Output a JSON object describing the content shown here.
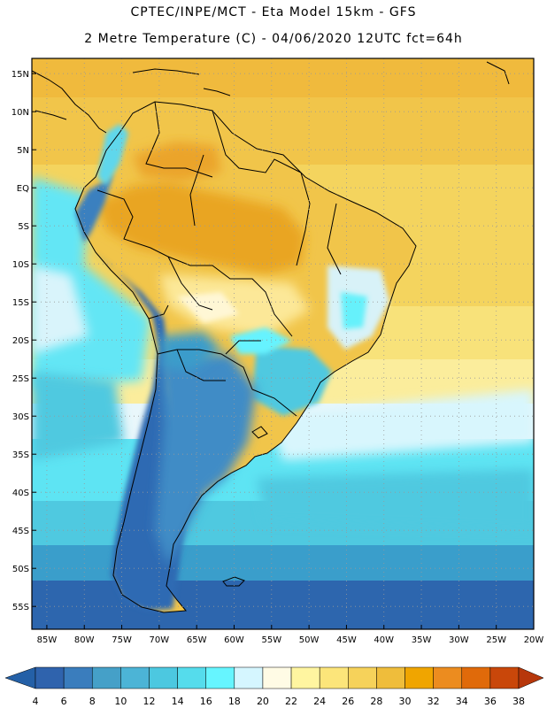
{
  "header": {
    "line1": "CPTEC/INPE/MCT -  Eta Model 15km - GFS",
    "line2": "2 Metre Temperature (C) - 04/06/2020 12UTC fct=64h"
  },
  "map": {
    "lon_range": [
      -87,
      -20
    ],
    "lat_range": [
      -58,
      17
    ],
    "lat_ticks": [
      {
        "value": 15,
        "label": "15N"
      },
      {
        "value": 10,
        "label": "10N"
      },
      {
        "value": 5,
        "label": "5N"
      },
      {
        "value": 0,
        "label": "EQ"
      },
      {
        "value": -5,
        "label": "5S"
      },
      {
        "value": -10,
        "label": "10S"
      },
      {
        "value": -15,
        "label": "15S"
      },
      {
        "value": -20,
        "label": "20S"
      },
      {
        "value": -25,
        "label": "25S"
      },
      {
        "value": -30,
        "label": "30S"
      },
      {
        "value": -35,
        "label": "35S"
      },
      {
        "value": -40,
        "label": "40S"
      },
      {
        "value": -45,
        "label": "45S"
      },
      {
        "value": -50,
        "label": "50S"
      },
      {
        "value": -55,
        "label": "55S"
      }
    ],
    "lon_ticks": [
      {
        "value": -85,
        "label": "85W"
      },
      {
        "value": -80,
        "label": "80W"
      },
      {
        "value": -75,
        "label": "75W"
      },
      {
        "value": -70,
        "label": "70W"
      },
      {
        "value": -65,
        "label": "65W"
      },
      {
        "value": -60,
        "label": "60W"
      },
      {
        "value": -55,
        "label": "55W"
      },
      {
        "value": -50,
        "label": "50W"
      },
      {
        "value": -45,
        "label": "45W"
      },
      {
        "value": -40,
        "label": "40W"
      },
      {
        "value": -35,
        "label": "35W"
      },
      {
        "value": -30,
        "label": "30W"
      },
      {
        "value": -25,
        "label": "25W"
      },
      {
        "value": -20,
        "label": "20W"
      }
    ],
    "grid": true,
    "grid_style": "dotted"
  },
  "colorbar": {
    "labels": [
      "4",
      "6",
      "8",
      "10",
      "12",
      "14",
      "16",
      "18",
      "20",
      "22",
      "24",
      "26",
      "28",
      "30",
      "32",
      "34",
      "36",
      "38"
    ],
    "colors": [
      "#2f63ad",
      "#3a7dbd",
      "#45a0c8",
      "#4cb4d6",
      "#4cc8e0",
      "#55dcec",
      "#66f5ff",
      "#d5f6ff",
      "#fffbe5",
      "#fff5a0",
      "#fce57a",
      "#f6d25a",
      "#efbd3b",
      "#f0a500",
      "#ec8c1f",
      "#e06a0a",
      "#c9470a"
    ],
    "under_color": "#2460a7",
    "over_color": "#b7370b"
  }
}
